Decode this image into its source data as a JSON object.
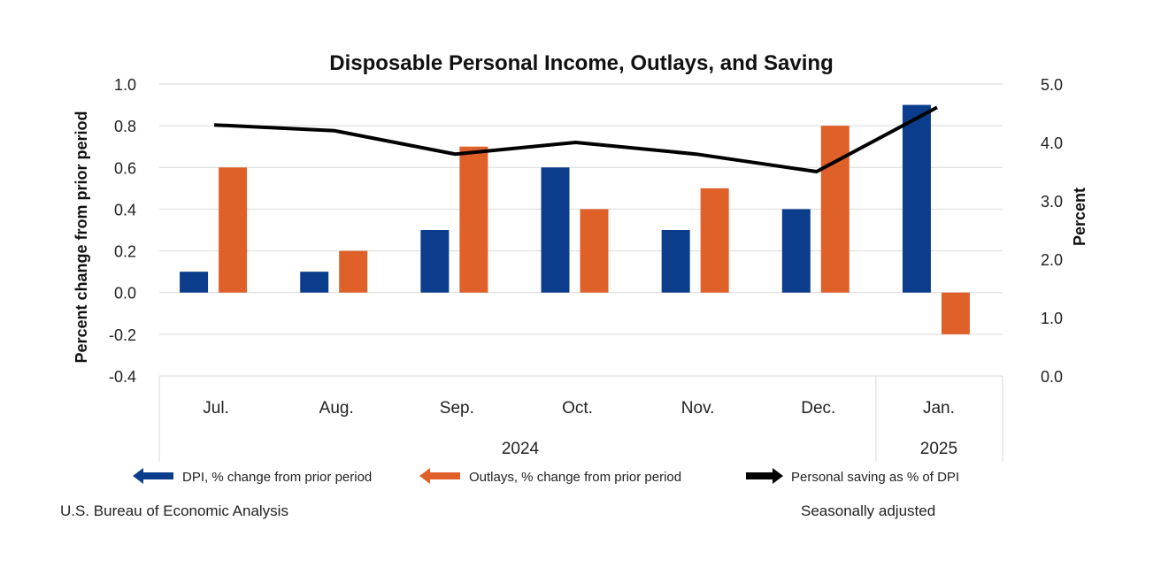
{
  "chart_data": {
    "type": "bar",
    "title": "Disposable Personal Income, Outlays, and Saving",
    "ylabel": "Percent change from prior period",
    "y2label": "Percent",
    "categories": [
      "Jul.",
      "Aug.",
      "Sep.",
      "Oct.",
      "Nov.",
      "Dec.",
      "Jan."
    ],
    "category_groups": [
      {
        "label": "2024",
        "categories": [
          "Jul.",
          "Aug.",
          "Sep.",
          "Oct.",
          "Nov.",
          "Dec."
        ]
      },
      {
        "label": "2025",
        "categories": [
          "Jan."
        ]
      }
    ],
    "ylim": [
      -0.4,
      1.0
    ],
    "y2lim": [
      0.0,
      5.0
    ],
    "yticks": [
      "1.0",
      "0.8",
      "0.6",
      "0.4",
      "0.2",
      "0.0",
      "-0.2",
      "-0.4"
    ],
    "y2ticks": [
      "5.0",
      "4.0",
      "3.0",
      "2.0",
      "1.0",
      "0.0"
    ],
    "grid": true,
    "legend_position": "bottom",
    "series": [
      {
        "name": "DPI, % change from prior period",
        "type": "bar",
        "axis": "left",
        "color": "#0b3d8c",
        "values": [
          0.1,
          0.1,
          0.3,
          0.6,
          0.3,
          0.4,
          0.9
        ]
      },
      {
        "name": "Outlays, % change from prior period",
        "type": "bar",
        "axis": "left",
        "color": "#e0602a",
        "values": [
          0.6,
          0.2,
          0.7,
          0.4,
          0.5,
          0.8,
          -0.2
        ]
      },
      {
        "name": "Personal saving as % of DPI",
        "type": "line",
        "axis": "right",
        "color": "#000000",
        "values": [
          4.3,
          4.2,
          3.8,
          4.0,
          3.8,
          3.5,
          4.6
        ]
      }
    ]
  },
  "footer": {
    "source": "U.S. Bureau of Economic Analysis",
    "note": "Seasonally adjusted"
  }
}
